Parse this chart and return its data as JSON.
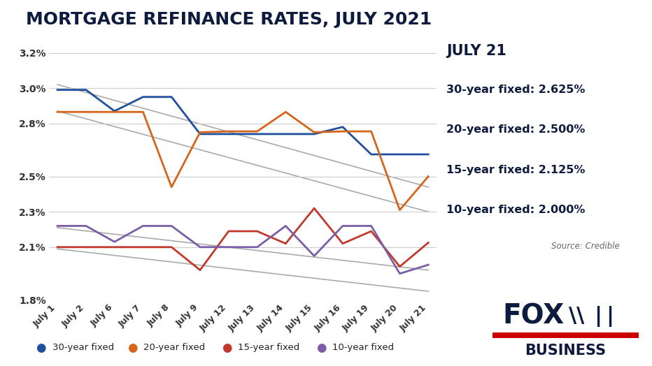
{
  "title": "MORTGAGE REFINANCE RATES, JULY 2021",
  "title_fontsize": 18,
  "title_color": "#0d1b3e",
  "title_fontweight": "bold",
  "background_color": "#ffffff",
  "dates": [
    "July 1",
    "July 2",
    "July 6",
    "July 7",
    "July 8",
    "July 9",
    "July 12",
    "July 13",
    "July 14",
    "July 15",
    "July 16",
    "July 19",
    "July 20",
    "July 21"
  ],
  "line_30yr": [
    2.99,
    2.99,
    2.87,
    2.95,
    2.95,
    2.74,
    2.74,
    2.74,
    2.74,
    2.74,
    2.78,
    2.625,
    2.625,
    2.625
  ],
  "line_20yr": [
    2.865,
    2.865,
    2.865,
    2.865,
    2.44,
    2.75,
    2.755,
    2.755,
    2.865,
    2.75,
    2.755,
    2.755,
    2.31,
    2.5
  ],
  "line_15yr": [
    2.1,
    2.1,
    2.1,
    2.1,
    2.1,
    1.97,
    2.19,
    2.19,
    2.12,
    2.32,
    2.12,
    2.19,
    1.99,
    2.125
  ],
  "line_10yr": [
    2.22,
    2.22,
    2.13,
    2.22,
    2.22,
    2.1,
    2.1,
    2.1,
    2.22,
    2.05,
    2.22,
    2.22,
    1.95,
    2.0
  ],
  "color_30yr": "#1f4e9e",
  "color_20yr": "#d4651a",
  "color_15yr": "#c0392b",
  "color_10yr": "#7b5ea7",
  "ylim": [
    1.8,
    3.25
  ],
  "yticks": [
    1.8,
    2.1,
    2.3,
    2.5,
    2.8,
    3.0,
    3.2
  ],
  "ytick_labels": [
    "1.8%",
    "2.1%",
    "2.3%",
    "2.5%",
    "2.8%",
    "3.0%",
    "3.2%"
  ],
  "trend_lines": [
    [
      3.02,
      2.44
    ],
    [
      2.87,
      2.3
    ],
    [
      2.21,
      1.97
    ],
    [
      2.09,
      1.85
    ]
  ],
  "sidebar_title": "JULY 21",
  "sidebar_lines": [
    "30-year fixed: 2.625%",
    "20-year fixed: 2.500%",
    "15-year fixed: 2.125%",
    "10-year fixed: 2.000%"
  ],
  "source_text": "Source: Credible",
  "legend_labels": [
    "30-year fixed",
    "20-year fixed",
    "15-year fixed",
    "10-year fixed"
  ],
  "legend_colors": [
    "#1f4e9e",
    "#d4651a",
    "#c0392b",
    "#7b5ea7"
  ]
}
